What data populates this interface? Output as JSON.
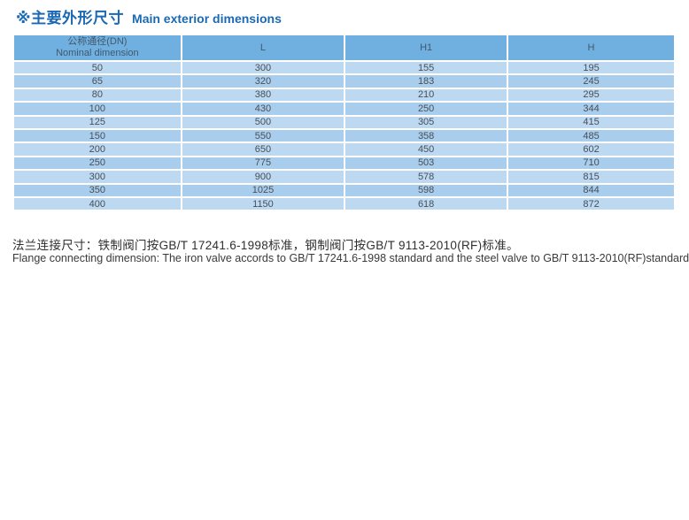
{
  "page": {
    "title_zh": "※主要外形尺寸",
    "title_en": "Main exterior dimensions",
    "accent_color": "#1c69b3"
  },
  "table": {
    "header_bg": "#6fb0e0",
    "row_colors": [
      "#bdd8f1",
      "#a9cdec"
    ],
    "columns": [
      {
        "label_zh": "公称通径(DN)",
        "label_en": "Nominal dimension"
      },
      {
        "label": "L"
      },
      {
        "label": "H1"
      },
      {
        "label": "H"
      }
    ],
    "rows": [
      [
        "50",
        "300",
        "155",
        "195"
      ],
      [
        "65",
        "320",
        "183",
        "245"
      ],
      [
        "80",
        "380",
        "210",
        "295"
      ],
      [
        "100",
        "430",
        "250",
        "344"
      ],
      [
        "125",
        "500",
        "305",
        "415"
      ],
      [
        "150",
        "550",
        "358",
        "485"
      ],
      [
        "200",
        "650",
        "450",
        "602"
      ],
      [
        "250",
        "775",
        "503",
        "710"
      ],
      [
        "300",
        "900",
        "578",
        "815"
      ],
      [
        "350",
        "1025",
        "598",
        "844"
      ],
      [
        "400",
        "1150",
        "618",
        "872"
      ]
    ]
  },
  "footnote": {
    "zh": "法兰连接尺寸：铁制阀门按GB/T 17241.6-1998标准，钢制阀门按GB/T 9113-2010(RF)标准。",
    "en": "Flange connecting dimension: The iron valve accords to GB/T 17241.6-1998  standard and the steel valve to GB/T 9113-2010(RF)standard."
  }
}
